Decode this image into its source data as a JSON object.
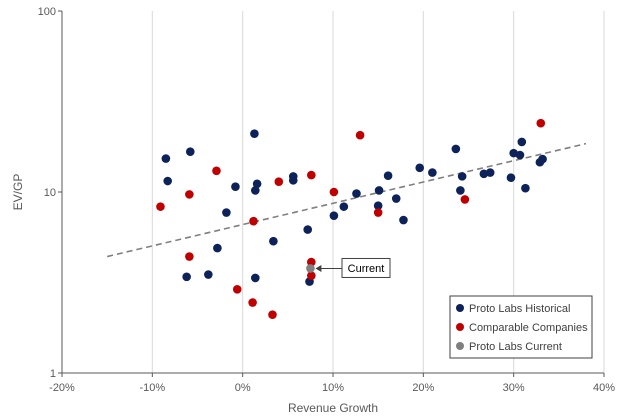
{
  "chart_data": {
    "type": "scatter",
    "xlabel": "Revenue Growth",
    "ylabel": "EV/GP",
    "xlim": [
      -0.2,
      0.4
    ],
    "ylim": [
      1,
      100
    ],
    "y_scale": "log",
    "x_ticks": [
      -0.2,
      -0.1,
      0,
      0.1,
      0.2,
      0.3,
      0.4
    ],
    "x_tick_labels": [
      "-20%",
      "-10%",
      "0%",
      "10%",
      "20%",
      "30%",
      "40%"
    ],
    "y_ticks": [
      1,
      10,
      100
    ],
    "y_tick_labels": [
      "1",
      "10",
      "100"
    ],
    "grid": "vertical",
    "legend_position": "bottom-right",
    "series": [
      {
        "name": "Proto Labs Historical",
        "color": "#0d2259",
        "points": [
          [
            -0.085,
            15.3
          ],
          [
            -0.083,
            11.5
          ],
          [
            -0.058,
            16.7
          ],
          [
            -0.062,
            3.4
          ],
          [
            -0.038,
            3.5
          ],
          [
            -0.028,
            4.9
          ],
          [
            -0.018,
            7.7
          ],
          [
            -0.008,
            10.7
          ],
          [
            0.013,
            21.0
          ],
          [
            0.014,
            10.2
          ],
          [
            0.016,
            11.1
          ],
          [
            0.014,
            3.35
          ],
          [
            0.034,
            5.35
          ],
          [
            0.056,
            12.2
          ],
          [
            0.056,
            11.6
          ],
          [
            0.072,
            6.2
          ],
          [
            0.074,
            3.2
          ],
          [
            0.101,
            7.4
          ],
          [
            0.112,
            8.3
          ],
          [
            0.126,
            9.8
          ],
          [
            0.15,
            8.4
          ],
          [
            0.151,
            10.2
          ],
          [
            0.161,
            12.3
          ],
          [
            0.17,
            9.2
          ],
          [
            0.178,
            7.0
          ],
          [
            0.196,
            13.6
          ],
          [
            0.21,
            12.8
          ],
          [
            0.236,
            17.3
          ],
          [
            0.241,
            10.2
          ],
          [
            0.243,
            12.2
          ],
          [
            0.267,
            12.6
          ],
          [
            0.274,
            12.8
          ],
          [
            0.297,
            12.0
          ],
          [
            0.3,
            16.4
          ],
          [
            0.307,
            16.0
          ],
          [
            0.309,
            18.9
          ],
          [
            0.313,
            10.5
          ],
          [
            0.329,
            14.6
          ],
          [
            0.332,
            15.2
          ]
        ]
      },
      {
        "name": "Comparable Companies",
        "color": "#c00000",
        "points": [
          [
            -0.091,
            8.3
          ],
          [
            -0.059,
            9.7
          ],
          [
            -0.059,
            4.4
          ],
          [
            -0.029,
            13.1
          ],
          [
            -0.006,
            2.9
          ],
          [
            0.011,
            2.45
          ],
          [
            0.012,
            6.9
          ],
          [
            0.033,
            2.1
          ],
          [
            0.04,
            11.4
          ],
          [
            0.076,
            12.4
          ],
          [
            0.076,
            4.1
          ],
          [
            0.076,
            3.45
          ],
          [
            0.101,
            10.0
          ],
          [
            0.13,
            20.6
          ],
          [
            0.15,
            7.7
          ],
          [
            0.246,
            9.1
          ],
          [
            0.33,
            24.0
          ]
        ]
      },
      {
        "name": "Proto Labs Current",
        "color": "#7f7f7f",
        "points": [
          [
            0.075,
            3.78
          ]
        ]
      }
    ],
    "trendline": {
      "x": [
        -0.15,
        0.38
      ],
      "y": [
        4.4,
        18.5
      ],
      "color": "#7f7f7f",
      "style": "dashed"
    },
    "annotations": [
      {
        "text": "Current",
        "x": 0.075,
        "y": 3.78
      }
    ]
  }
}
